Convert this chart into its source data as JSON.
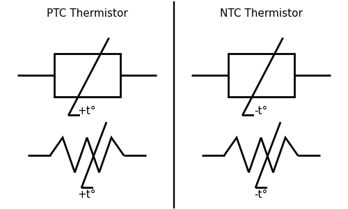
{
  "background_color": "#ffffff",
  "line_color": "#000000",
  "title_ptc": "PTC Thermistor",
  "title_ntc": "NTC Thermistor",
  "label_ptc": "+t°",
  "label_ntc": "-t°",
  "title_fontsize": 11,
  "label_fontsize": 11,
  "lw": 2.0,
  "fig_width": 5.0,
  "fig_height": 3.0,
  "dpi": 100
}
